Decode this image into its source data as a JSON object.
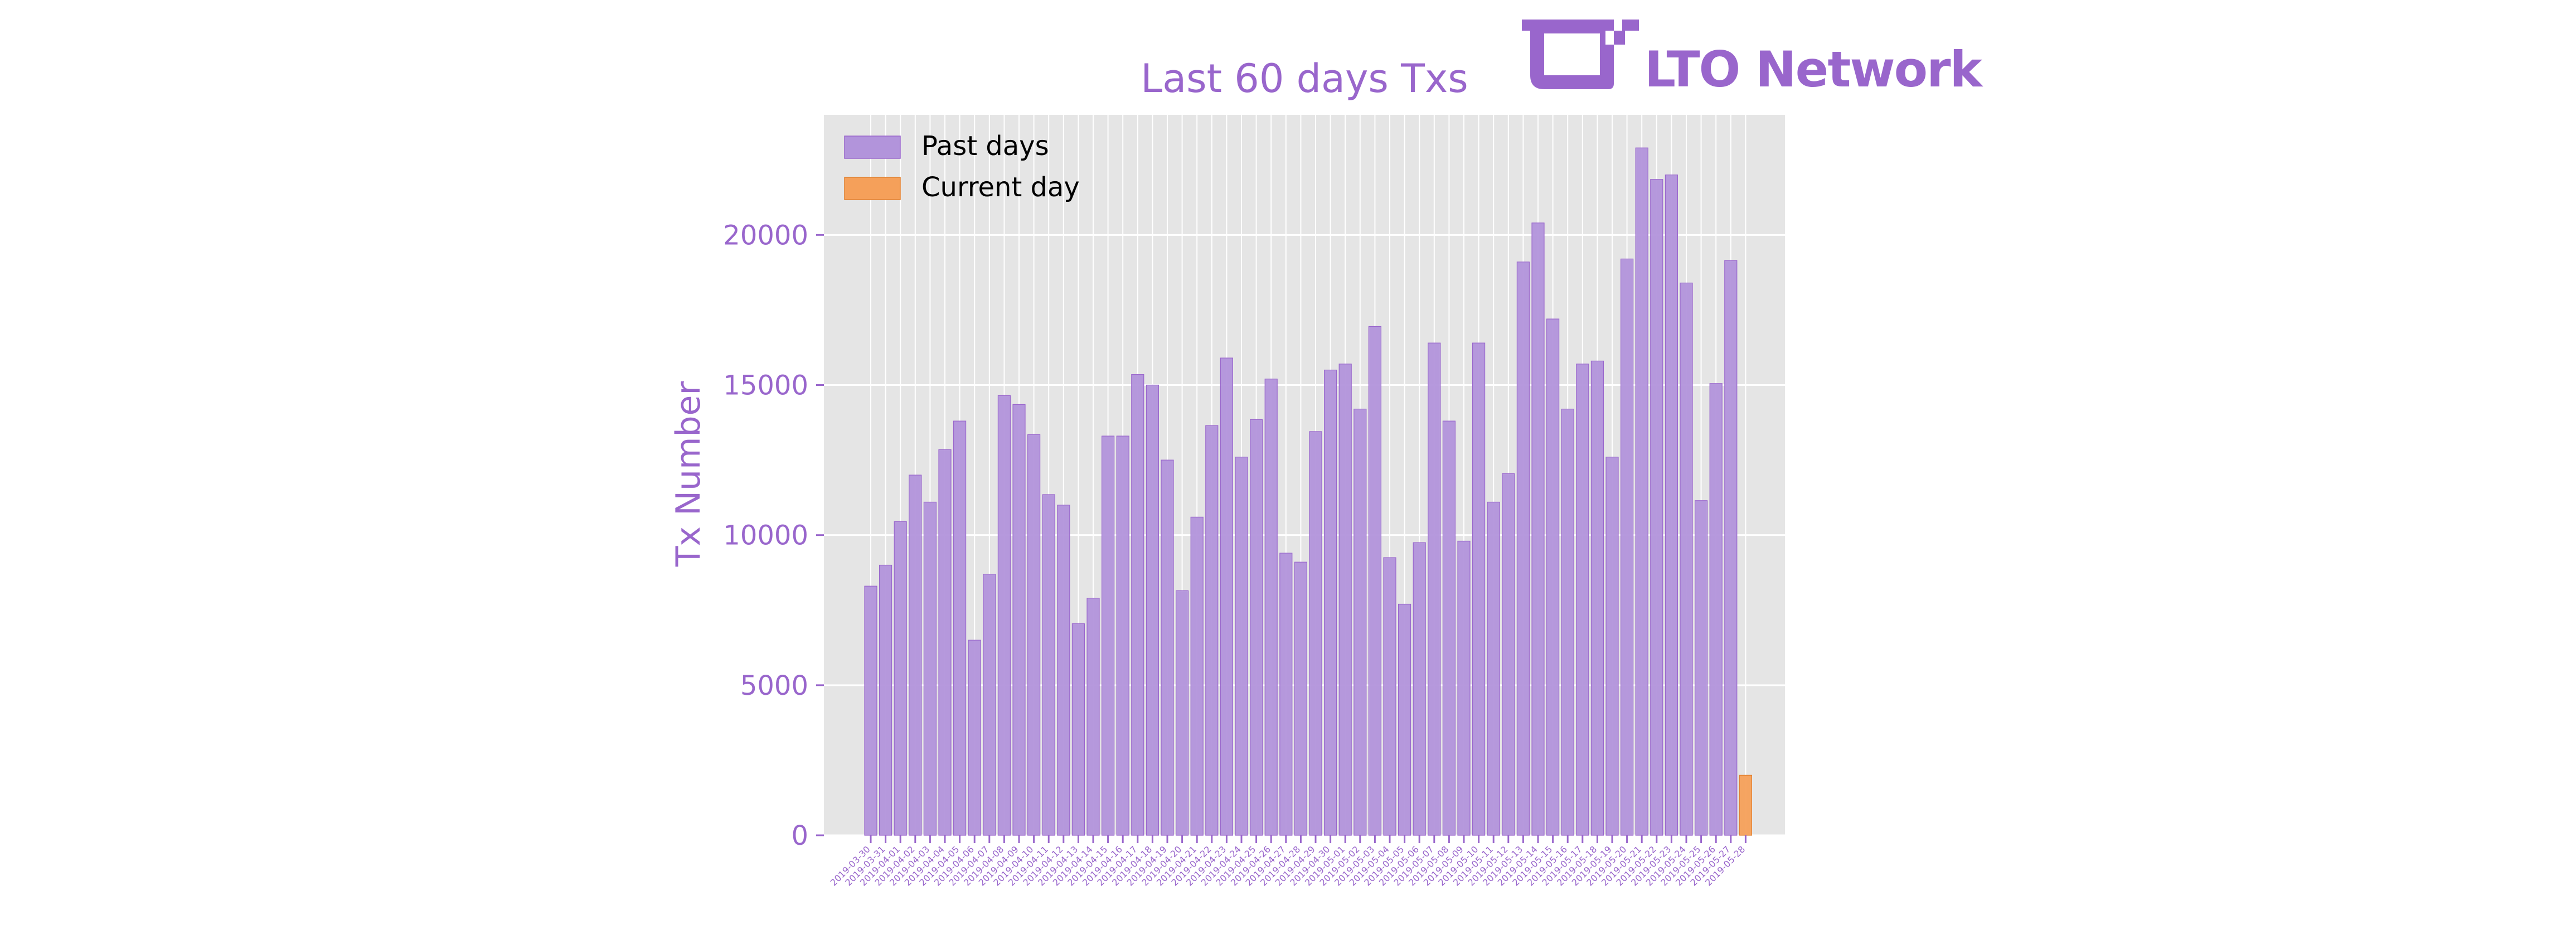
{
  "logo": {
    "text": "LTO Network"
  },
  "colors": {
    "accent": "#9966cc",
    "past_bar": "#b294db",
    "current_bar": "#f5a05a",
    "plot_bg": "#e5e5e5",
    "grid": "#ffffff",
    "legend_text": "#000000"
  },
  "chart_data": {
    "type": "bar",
    "title": "Last 60 days Txs",
    "ylabel": "Tx Number",
    "xlabel": "",
    "ylim": [
      0,
      24000
    ],
    "yticks": [
      0,
      5000,
      10000,
      15000,
      20000
    ],
    "grid": true,
    "legend_placement": "top-left",
    "legend": [
      "Past days",
      "Current day"
    ],
    "categories": [
      "2019-03-30",
      "2019-03-31",
      "2019-04-01",
      "2019-04-02",
      "2019-04-03",
      "2019-04-04",
      "2019-04-05",
      "2019-04-06",
      "2019-04-07",
      "2019-04-08",
      "2019-04-09",
      "2019-04-10",
      "2019-04-11",
      "2019-04-12",
      "2019-04-13",
      "2019-04-14",
      "2019-04-15",
      "2019-04-16",
      "2019-04-17",
      "2019-04-18",
      "2019-04-19",
      "2019-04-20",
      "2019-04-21",
      "2019-04-22",
      "2019-04-23",
      "2019-04-24",
      "2019-04-25",
      "2019-04-26",
      "2019-04-27",
      "2019-04-28",
      "2019-04-29",
      "2019-04-30",
      "2019-05-01",
      "2019-05-02",
      "2019-05-03",
      "2019-05-04",
      "2019-05-05",
      "2019-05-06",
      "2019-05-07",
      "2019-05-08",
      "2019-05-09",
      "2019-05-10",
      "2019-05-11",
      "2019-05-12",
      "2019-05-13",
      "2019-05-14",
      "2019-05-15",
      "2019-05-16",
      "2019-05-17",
      "2019-05-18",
      "2019-05-19",
      "2019-05-20",
      "2019-05-21",
      "2019-05-22",
      "2019-05-23",
      "2019-05-24",
      "2019-05-25",
      "2019-05-26",
      "2019-05-27",
      "2019-05-28"
    ],
    "series": [
      {
        "name": "Past days",
        "values": [
          8300,
          9000,
          10450,
          12000,
          11100,
          12850,
          13800,
          6500,
          8700,
          14650,
          14350,
          13350,
          11350,
          11000,
          7050,
          7900,
          13300,
          13300,
          15350,
          15000,
          12500,
          8150,
          10600,
          13650,
          15900,
          12600,
          13850,
          15200,
          9400,
          9100,
          13450,
          15500,
          15700,
          14200,
          16950,
          9250,
          7700,
          9750,
          16400,
          13800,
          9800,
          16400,
          11100,
          12050,
          19100,
          20400,
          17200,
          14200,
          15700,
          15800,
          12600,
          19200,
          22900,
          21850,
          22000,
          18400,
          11150,
          15050,
          19150,
          null
        ]
      },
      {
        "name": "Current day",
        "values": [
          null,
          null,
          null,
          null,
          null,
          null,
          null,
          null,
          null,
          null,
          null,
          null,
          null,
          null,
          null,
          null,
          null,
          null,
          null,
          null,
          null,
          null,
          null,
          null,
          null,
          null,
          null,
          null,
          null,
          null,
          null,
          null,
          null,
          null,
          null,
          null,
          null,
          null,
          null,
          null,
          null,
          null,
          null,
          null,
          null,
          null,
          null,
          null,
          null,
          null,
          null,
          null,
          null,
          null,
          null,
          null,
          null,
          null,
          null,
          2000
        ]
      }
    ]
  }
}
